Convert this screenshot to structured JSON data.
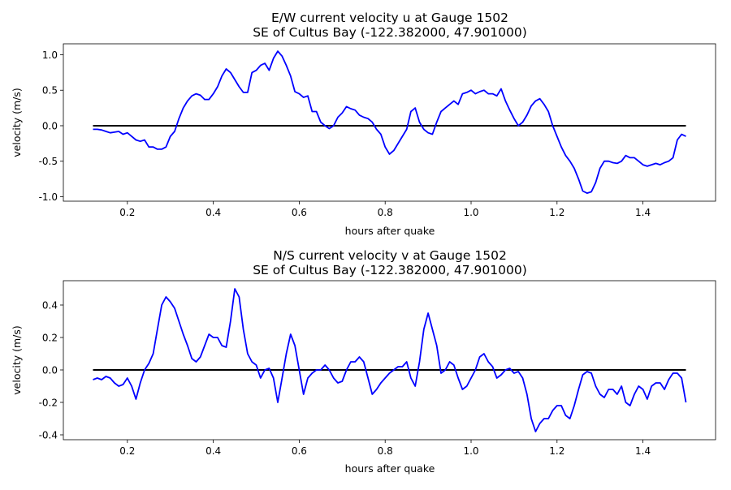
{
  "chart_data": [
    {
      "type": "line",
      "title": "E/W current velocity u at Gauge 1502",
      "subtitle": "SE of Cultus Bay  (-122.382000, 47.901000)",
      "xlabel": "hours after quake",
      "ylabel": "velocity (m/s)",
      "xlim": [
        0.051,
        1.569
      ],
      "ylim": [
        -1.063,
        1.154
      ],
      "xticks": [
        "0.2",
        "0.4",
        "0.6",
        "0.8",
        "1.0",
        "1.2",
        "1.4"
      ],
      "yticks": [
        "-1.0",
        "-0.5",
        "0.0",
        "0.5",
        "1.0"
      ],
      "grid": false,
      "zero_line": {
        "x": [
          0.12,
          1.5
        ],
        "y": 0,
        "color": "#000000"
      },
      "series": [
        {
          "name": "u",
          "color": "#0000ff",
          "x_start": 0.12,
          "x_step": 0.01,
          "values": [
            -0.05,
            -0.05,
            -0.06,
            -0.08,
            -0.1,
            -0.09,
            -0.08,
            -0.12,
            -0.1,
            -0.15,
            -0.2,
            -0.22,
            -0.2,
            -0.3,
            -0.3,
            -0.33,
            -0.33,
            -0.3,
            -0.15,
            -0.08,
            0.1,
            0.25,
            0.35,
            0.42,
            0.45,
            0.43,
            0.37,
            0.37,
            0.45,
            0.55,
            0.7,
            0.8,
            0.75,
            0.65,
            0.55,
            0.47,
            0.47,
            0.75,
            0.78,
            0.85,
            0.88,
            0.78,
            0.95,
            1.05,
            0.98,
            0.85,
            0.7,
            0.48,
            0.45,
            0.4,
            0.42,
            0.2,
            0.2,
            0.05,
            0.0,
            -0.04,
            0.0,
            0.12,
            0.18,
            0.27,
            0.24,
            0.22,
            0.15,
            0.12,
            0.1,
            0.05,
            -0.05,
            -0.12,
            -0.3,
            -0.4,
            -0.35,
            -0.25,
            -0.15,
            -0.05,
            0.2,
            0.25,
            0.05,
            -0.05,
            -0.1,
            -0.12,
            0.05,
            0.2,
            0.25,
            0.3,
            0.35,
            0.3,
            0.45,
            0.47,
            0.5,
            0.45,
            0.48,
            0.5,
            0.45,
            0.45,
            0.42,
            0.52,
            0.35,
            0.22,
            0.1,
            0.0,
            0.05,
            0.15,
            0.28,
            0.35,
            0.38,
            0.3,
            0.2,
            0.0,
            -0.15,
            -0.3,
            -0.42,
            -0.5,
            -0.6,
            -0.75,
            -0.92,
            -0.95,
            -0.93,
            -0.8,
            -0.6,
            -0.5,
            -0.5,
            -0.52,
            -0.53,
            -0.5,
            -0.42,
            -0.45,
            -0.45,
            -0.5,
            -0.55,
            -0.57,
            -0.55,
            -0.53,
            -0.55,
            -0.52,
            -0.5,
            -0.45,
            -0.2,
            -0.12,
            -0.15
          ]
        }
      ]
    },
    {
      "type": "line",
      "title": "N/S current velocity v at Gauge 1502",
      "subtitle": "SE of Cultus Bay  (-122.382000, 47.901000)",
      "xlabel": "hours after quake",
      "ylabel": "velocity (m/s)",
      "xlim": [
        0.051,
        1.569
      ],
      "ylim": [
        -0.43,
        0.55
      ],
      "xticks": [
        "0.2",
        "0.4",
        "0.6",
        "0.8",
        "1.0",
        "1.2",
        "1.4"
      ],
      "yticks": [
        "-0.4",
        "-0.2",
        "0.0",
        "0.2",
        "0.4"
      ],
      "grid": false,
      "zero_line": {
        "x": [
          0.12,
          1.5
        ],
        "y": 0,
        "color": "#000000"
      },
      "series": [
        {
          "name": "v",
          "color": "#0000ff",
          "x_start": 0.12,
          "x_step": 0.01,
          "values": [
            -0.06,
            -0.05,
            -0.06,
            -0.04,
            -0.05,
            -0.08,
            -0.1,
            -0.09,
            -0.05,
            -0.1,
            -0.18,
            -0.08,
            0.0,
            0.04,
            0.1,
            0.25,
            0.4,
            0.45,
            0.42,
            0.38,
            0.3,
            0.22,
            0.15,
            0.07,
            0.05,
            0.08,
            0.15,
            0.22,
            0.2,
            0.2,
            0.15,
            0.14,
            0.3,
            0.5,
            0.45,
            0.25,
            0.1,
            0.05,
            0.03,
            -0.05,
            0.0,
            0.01,
            -0.05,
            -0.2,
            -0.05,
            0.1,
            0.22,
            0.15,
            0.0,
            -0.15,
            -0.05,
            -0.02,
            0.0,
            0.0,
            0.03,
            0.0,
            -0.05,
            -0.08,
            -0.07,
            0.0,
            0.05,
            0.05,
            0.08,
            0.05,
            -0.05,
            -0.15,
            -0.12,
            -0.08,
            -0.05,
            -0.02,
            0.0,
            0.02,
            0.02,
            0.05,
            -0.05,
            -0.1,
            0.05,
            0.25,
            0.35,
            0.25,
            0.15,
            -0.02,
            0.0,
            0.05,
            0.03,
            -0.05,
            -0.12,
            -0.1,
            -0.05,
            0.0,
            0.08,
            0.1,
            0.05,
            0.02,
            -0.05,
            -0.03,
            0.0,
            0.01,
            -0.02,
            -0.01,
            -0.05,
            -0.15,
            -0.3,
            -0.38,
            -0.33,
            -0.3,
            -0.3,
            -0.25,
            -0.22,
            -0.22,
            -0.28,
            -0.3,
            -0.22,
            -0.12,
            -0.03,
            -0.01,
            -0.02,
            -0.1,
            -0.15,
            -0.17,
            -0.12,
            -0.12,
            -0.15,
            -0.1,
            -0.2,
            -0.22,
            -0.15,
            -0.1,
            -0.12,
            -0.18,
            -0.1,
            -0.08,
            -0.08,
            -0.12,
            -0.06,
            -0.02,
            -0.02,
            -0.05,
            -0.2
          ]
        }
      ]
    }
  ]
}
